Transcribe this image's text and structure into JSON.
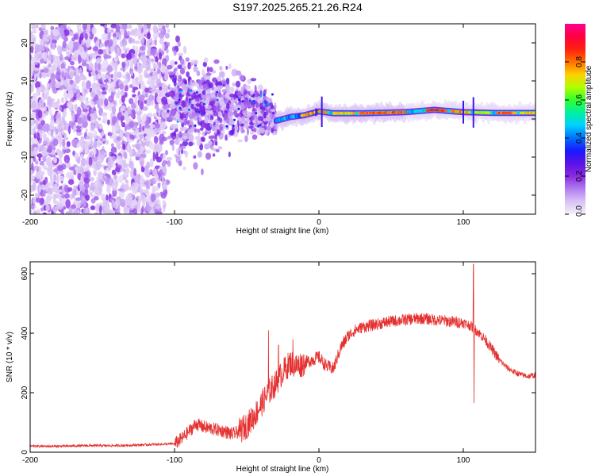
{
  "title": "S197.2025.265.21.26.R24",
  "colors": {
    "snr_line": "#e53030",
    "colorbar_stops": [
      "#f5f0fa",
      "#d9c2f5",
      "#b07cf0",
      "#8a2be2",
      "#5a12e6",
      "#1a18ff",
      "#0070ff",
      "#00d0ff",
      "#00f0a0",
      "#30ff30",
      "#b0ff00",
      "#ffd000",
      "#ff7000",
      "#ff2010",
      "#ff0040",
      "#ff0090"
    ]
  },
  "chart_data": [
    {
      "type": "heatmap",
      "name": "spectrogram",
      "xlabel": "Height of straight line (km)",
      "ylabel": "Frequency (Hz)",
      "xlim": [
        -200,
        150
      ],
      "ylim": [
        -25,
        25
      ],
      "xticks": [
        -200,
        -100,
        0,
        100
      ],
      "yticks": [
        -20,
        -10,
        0,
        10,
        20
      ],
      "colorbar": {
        "label": "Normalized spectral amplitude",
        "range": [
          0,
          1
        ],
        "ticks": [
          0.0,
          0.2,
          0.4,
          0.6,
          0.8
        ]
      },
      "features": {
        "noise_region_x": [
          -200,
          -105
        ],
        "scatter_region_x": [
          -105,
          -30
        ],
        "scatter_center_hz": 3,
        "line_region_x": [
          -30,
          150
        ],
        "line_freq_hz": [
          [
            -30,
            -0.5
          ],
          [
            -20,
            0.5
          ],
          [
            -10,
            1.0
          ],
          [
            0,
            2.0
          ],
          [
            10,
            1.5
          ],
          [
            30,
            1.5
          ],
          [
            60,
            1.8
          ],
          [
            80,
            2.4
          ],
          [
            100,
            1.8
          ],
          [
            120,
            1.6
          ],
          [
            150,
            1.6
          ]
        ]
      }
    },
    {
      "type": "line",
      "name": "snr",
      "xlabel": "Height of straight line (km)",
      "ylabel": "SNR (10 * v/v)",
      "xlim": [
        -200,
        150
      ],
      "ylim": [
        0,
        640
      ],
      "xticks": [
        -200,
        -100,
        0,
        100
      ],
      "yticks": [
        0,
        200,
        400,
        600
      ],
      "series": [
        {
          "name": "SNR",
          "x": [
            -200,
            -180,
            -160,
            -140,
            -120,
            -100,
            -95,
            -90,
            -85,
            -80,
            -75,
            -70,
            -65,
            -60,
            -55,
            -50,
            -45,
            -40,
            -35,
            -30,
            -25,
            -20,
            -15,
            -10,
            -5,
            0,
            5,
            10,
            15,
            20,
            25,
            30,
            40,
            50,
            60,
            70,
            80,
            90,
            100,
            105,
            110,
            115,
            120,
            125,
            130,
            135,
            140,
            145,
            150
          ],
          "values": [
            20,
            20,
            22,
            22,
            25,
            28,
            45,
            70,
            95,
            85,
            80,
            75,
            70,
            60,
            70,
            90,
            120,
            160,
            200,
            230,
            270,
            300,
            290,
            300,
            310,
            320,
            290,
            280,
            350,
            390,
            410,
            420,
            430,
            440,
            445,
            450,
            445,
            440,
            435,
            425,
            405,
            380,
            345,
            310,
            285,
            270,
            260,
            255,
            260
          ],
          "spikes": [
            [
              -35,
              410
            ],
            [
              -28,
              360
            ],
            [
              -18,
              380
            ],
            [
              107,
              632
            ],
            [
              107.5,
              165
            ]
          ]
        }
      ]
    }
  ]
}
